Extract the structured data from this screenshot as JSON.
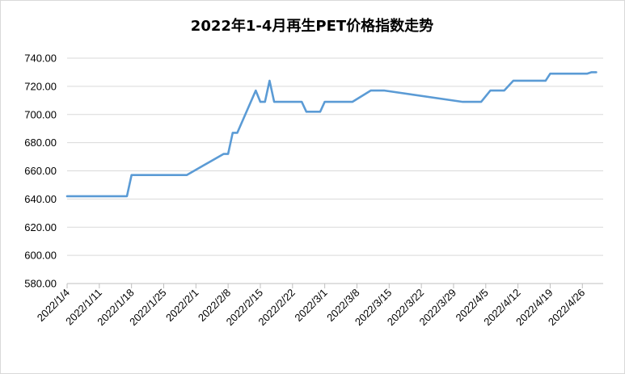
{
  "chart_data": {
    "type": "line",
    "title": "2022年1-4月再生PET价格指数走势",
    "xlabel": "",
    "ylabel": "",
    "ylim": [
      580,
      740
    ],
    "yticks": [
      "580.00",
      "600.00",
      "620.00",
      "640.00",
      "660.00",
      "680.00",
      "700.00",
      "720.00",
      "740.00"
    ],
    "xticks": [
      "2022/1/4",
      "2022/1/11",
      "2022/1/18",
      "2022/1/25",
      "2022/2/1",
      "2022/2/8",
      "2022/2/15",
      "2022/2/22",
      "2022/3/1",
      "2022/3/8",
      "2022/3/15",
      "2022/3/22",
      "2022/3/29",
      "2022/4/5",
      "2022/4/12",
      "2022/4/19",
      "2022/4/26"
    ],
    "grid": true,
    "legend": "none",
    "color": "#5b9bd5",
    "series": [
      {
        "x": [
          "2022/1/4",
          "2022/1/17",
          "2022/1/18",
          "2022/1/30",
          "2022/2/7",
          "2022/2/8",
          "2022/2/9",
          "2022/2/10",
          "2022/2/14",
          "2022/2/15",
          "2022/2/16",
          "2022/2/17",
          "2022/2/18",
          "2022/2/24",
          "2022/2/25",
          "2022/2/28",
          "2022/3/1",
          "2022/3/4",
          "2022/3/7",
          "2022/3/11",
          "2022/3/14",
          "2022/3/31",
          "2022/4/3",
          "2022/4/4",
          "2022/4/6",
          "2022/4/9",
          "2022/4/11",
          "2022/4/18",
          "2022/4/19",
          "2022/4/27",
          "2022/4/28",
          "2022/4/29"
        ],
        "values": [
          642,
          642,
          657,
          657,
          672,
          672,
          687,
          687,
          717,
          709,
          709,
          724,
          709,
          709,
          702,
          702,
          709,
          709,
          709,
          717,
          717,
          709,
          709,
          709,
          717,
          717,
          724,
          724,
          729,
          729,
          730,
          730
        ]
      }
    ]
  }
}
